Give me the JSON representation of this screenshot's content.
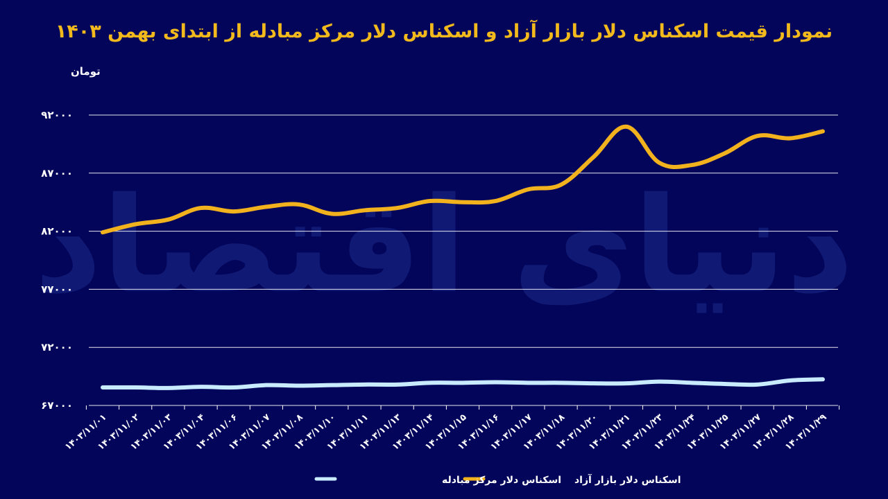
{
  "chart_data": {
    "type": "line",
    "title": "نمودار قیمت اسکناس دلار بازار آزاد و اسکناس دلار مرکز مبادله از ابتدای بهمن ۱۴۰۳",
    "ylabel": "تومان",
    "xlabel": "",
    "ylim": [
      67000,
      92000
    ],
    "yticks": [
      67000,
      72000,
      77000,
      82000,
      87000,
      92000
    ],
    "ytick_labels": [
      "۶۷۰۰۰",
      "۷۲۰۰۰",
      "۷۷۰۰۰",
      "۸۲۰۰۰",
      "۸۷۰۰۰",
      "۹۲۰۰۰"
    ],
    "categories": [
      "۱۴۰۳/۱۱/۰۱",
      "۱۴۰۳/۱۱/۰۲",
      "۱۴۰۳/۱۱/۰۳",
      "۱۴۰۳/۱۱/۰۴",
      "۱۴۰۳/۱۱/۰۶",
      "۱۴۰۳/۱۱/۰۷",
      "۱۴۰۳/۱۱/۰۸",
      "۱۴۰۳/۱۱/۱۰",
      "۱۴۰۳/۱۱/۱۱",
      "۱۴۰۳/۱۱/۱۳",
      "۱۴۰۳/۱۱/۱۴",
      "۱۴۰۳/۱۱/۱۵",
      "۱۴۰۳/۱۱/۱۶",
      "۱۴۰۳/۱۱/۱۷",
      "۱۴۰۳/۱۱/۱۸",
      "۱۴۰۳/۱۱/۲۰",
      "۱۴۰۳/۱۱/۲۱",
      "۱۴۰۳/۱۱/۲۳",
      "۱۴۰۳/۱۱/۲۴",
      "۱۴۰۳/۱۱/۲۵",
      "۱۴۰۳/۱۱/۲۷",
      "۱۴۰۳/۱۱/۲۸",
      "۱۴۰۳/۱۱/۲۹"
    ],
    "series": [
      {
        "name": "اسکناس دلار بازار آزاد",
        "color": "#f2b21d",
        "values": [
          81900,
          82600,
          83000,
          84000,
          83700,
          84100,
          84300,
          83500,
          83800,
          84000,
          84600,
          84500,
          84600,
          85600,
          86000,
          88400,
          91000,
          87900,
          87700,
          88700,
          90200,
          90000,
          90600
        ]
      },
      {
        "name": "اسکناس دلار مرکز مبادله",
        "color": "#c9ebff",
        "values": [
          68550,
          68550,
          68500,
          68600,
          68550,
          68750,
          68700,
          68750,
          68800,
          68800,
          68950,
          68950,
          69000,
          68950,
          68950,
          68900,
          68900,
          69050,
          68950,
          68850,
          68800,
          69150,
          69250
        ]
      }
    ],
    "grid": true,
    "legend_position": "bottom-center"
  },
  "watermark_text": "دنیای اقتصاد"
}
